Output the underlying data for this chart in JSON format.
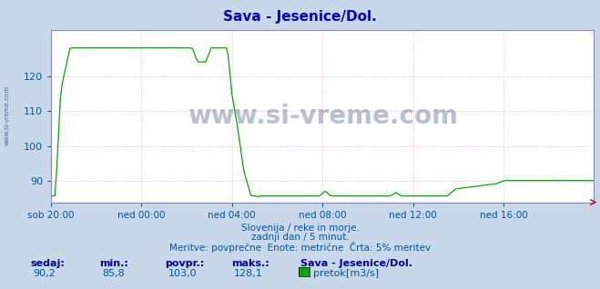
{
  "title": "Sava - Jesenice/Dol.",
  "title_color": "#0000cc",
  "bg_color": "#c8d8e8",
  "plot_bg_color": "#ffffff",
  "grid_color": "#ffaaaa",
  "grid_dot_color": "#ffbbbb",
  "line_color": "#00aa00",
  "axis_color": "#8888cc",
  "tick_color": "#0055aa",
  "watermark": "www.si-vreme.com",
  "watermark_color": "#1a3060",
  "subtitle1": "Slovenija / reke in morje.",
  "subtitle2": "zadnji dan / 5 minut.",
  "subtitle3": "Meritve: povprečne  Enote: metrične  Črta: 5% meritev",
  "subtitle_color": "#0055aa",
  "footer_labels": [
    "sedaj:",
    "min.:",
    "povpr.:",
    "maks.:"
  ],
  "footer_values": [
    "90,2",
    "85,8",
    "103,0",
    "128,1"
  ],
  "footer_series": "Sava - Jesenice/Dol.",
  "footer_legend": "pretok[m3/s]",
  "footer_label_color": "#0000aa",
  "footer_value_color": "#0055aa",
  "legend_color": "#00aa00",
  "ylim": [
    84,
    133
  ],
  "yticks": [
    90,
    100,
    110,
    120
  ],
  "xtick_labels": [
    "sob 20:00",
    "ned 00:00",
    "ned 04:00",
    "ned 08:00",
    "ned 12:00",
    "ned 16:00"
  ],
  "xtick_positions": [
    0.0,
    0.1667,
    0.3333,
    0.5,
    0.6667,
    0.8333
  ],
  "xlim": [
    0,
    1
  ],
  "left_text": "www.si-vreme.com",
  "left_text_color": "#3a5a8a",
  "n_points": 289
}
